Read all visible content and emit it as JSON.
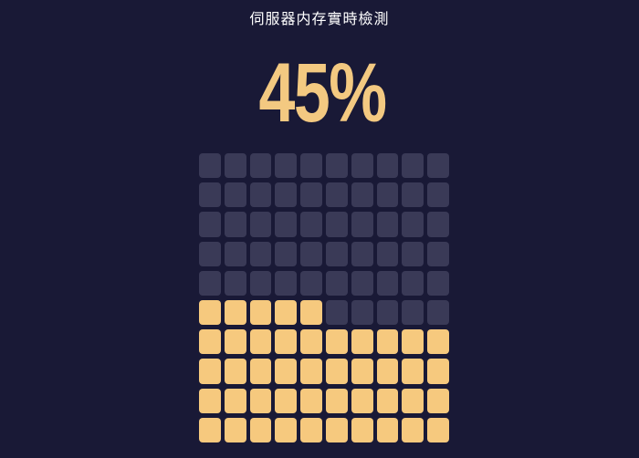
{
  "header": {
    "title": "伺服器内存實時檢測"
  },
  "usage": {
    "value_label": "45%"
  },
  "chart_data": {
    "type": "heatmap",
    "variant": "waffle-progress-grid",
    "title": "伺服器内存實時檢測",
    "value_label": "45%",
    "value_percent": 45,
    "grid": {
      "rows": 10,
      "columns": 10,
      "total_cells": 100,
      "filled_cells": 45,
      "fill_origin": "bottom-left",
      "partial_row_fill_direction": "left-to-right",
      "partial_row_index_from_top": 6,
      "partial_row_filled_count": 5,
      "full_filled_rows_from_bottom": 4
    },
    "legend_position": "none",
    "grid_lines": false,
    "colors": {
      "background": "#191936",
      "filled_cell": "#f6c97e",
      "empty_cell": "#3a3a57",
      "value_text": "#f3c981",
      "title_text": "#ffffff"
    }
  }
}
